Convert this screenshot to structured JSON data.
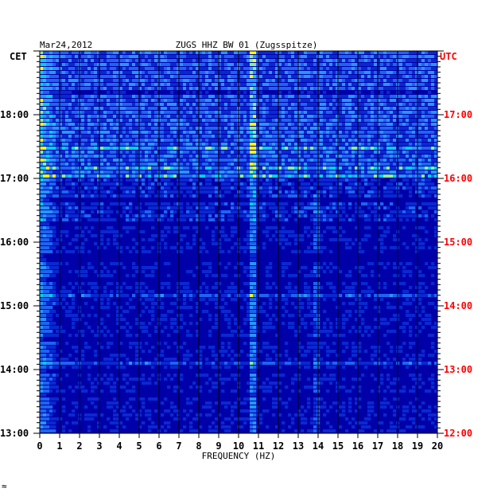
{
  "chart_data": {
    "type": "heatmap",
    "title": "ZUGS HHZ BW 01 (Zugsspitze)",
    "date": "Mar24,2012",
    "left_axis_label": "CET",
    "right_axis_label": "UTC",
    "xlabel": "FREQUENCY (HZ)",
    "xlim": [
      0,
      20
    ],
    "x_ticks": [
      "0",
      "1",
      "2",
      "3",
      "4",
      "5",
      "6",
      "7",
      "8",
      "9",
      "10",
      "11",
      "12",
      "13",
      "14",
      "15",
      "16",
      "17",
      "18",
      "19",
      "20"
    ],
    "cet_ticks": [
      "18:00",
      "17:00",
      "16:00",
      "15:00",
      "14:00",
      "13:00"
    ],
    "utc_ticks": [
      "17:00",
      "16:00",
      "15:00",
      "14:00",
      "13:00",
      "12:00"
    ],
    "time_range_cet": [
      "13:00",
      "19:00"
    ],
    "rows_per_hour": 12,
    "colors": {
      "low": "#0000b4",
      "mid": "#1e78ff",
      "high": "#00e6e6",
      "peak": "#ffff00",
      "utc_text": "#ff0000",
      "grid": "#000000"
    },
    "features": [
      {
        "name": "low-frequency band",
        "freq_range": [
          0.1,
          1.0
        ],
        "strength": "high"
      },
      {
        "name": "narrow spectral line",
        "freq": 10.7,
        "strength": "high"
      },
      {
        "name": "narrow spectral line",
        "freq": 13.9,
        "strength": "medium"
      }
    ]
  },
  "corner_mark": "≈"
}
